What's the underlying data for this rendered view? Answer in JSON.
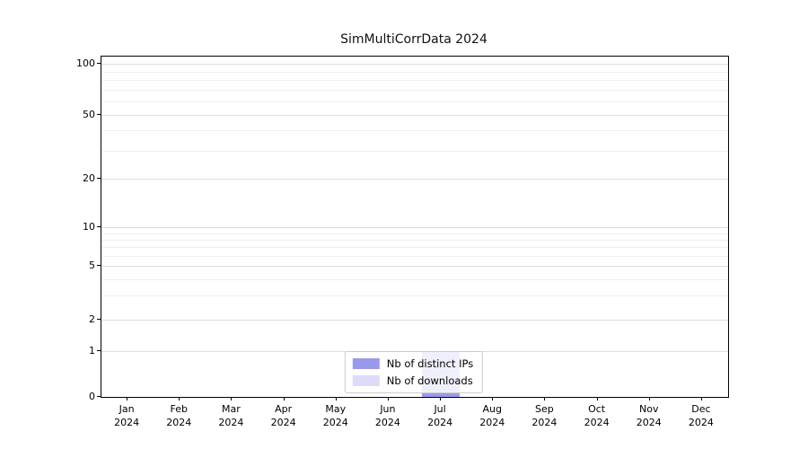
{
  "title": "SimMultiCorrData 2024",
  "chart_data": {
    "type": "bar",
    "categories": [
      "Jan",
      "Feb",
      "Mar",
      "Apr",
      "May",
      "Jun",
      "Jul",
      "Aug",
      "Sep",
      "Oct",
      "Nov",
      "Dec"
    ],
    "year_label": "2024",
    "series": [
      {
        "name": "Nb of downloads",
        "color": "#dcdcfa",
        "values": [
          0,
          0,
          0,
          0,
          0,
          0,
          1,
          0,
          0,
          0,
          0,
          0
        ]
      },
      {
        "name": "Nb of distinct IPs",
        "color": "#9a9aec",
        "values": [
          0,
          0,
          0,
          0,
          0,
          0,
          1,
          0,
          0,
          0,
          0,
          0
        ]
      }
    ],
    "yticks": [
      0,
      1,
      2,
      5,
      10,
      20,
      50,
      100
    ],
    "minor_yticks": [
      3,
      4,
      6,
      7,
      8,
      9,
      30,
      40,
      60,
      70,
      80,
      90
    ],
    "ylim": [
      0,
      110
    ],
    "yscale": "symlog",
    "grid": true,
    "legend_position": "lower center",
    "legend_order": [
      "Nb of distinct IPs",
      "Nb of downloads"
    ]
  },
  "colors": {
    "distinct_ips": "#9a9aec",
    "downloads": "#dcdcfa",
    "grid_major": "#dedede",
    "grid_minor": "#efefef",
    "spine": "#000000"
  }
}
